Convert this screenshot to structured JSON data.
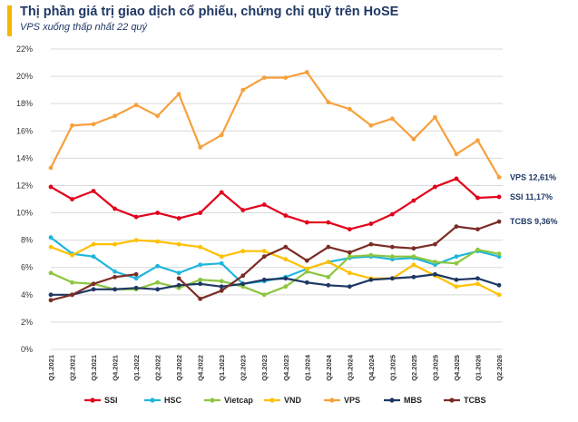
{
  "header": {
    "title": "Thị phần giá trị giao dịch cổ phiếu, chứng chỉ quỹ trên HoSE",
    "subtitle": "VPS xuống thấp nhất 22 quý"
  },
  "chart_data": {
    "type": "line",
    "title": "Thị phần giá trị giao dịch cổ phiếu, chứng chỉ quỹ trên HoSE",
    "subtitle": "VPS xuống thấp nhất 22 quý",
    "xlabel": "",
    "ylabel": "",
    "ylim": [
      0,
      22
    ],
    "yticks": [
      "0%",
      "2%",
      "4%",
      "6%",
      "8%",
      "10%",
      "12%",
      "14%",
      "16%",
      "18%",
      "20%",
      "22%"
    ],
    "grid": true,
    "legend_position": "bottom",
    "x": [
      "Q1.2021",
      "Q2.2021",
      "Q3.2021",
      "Q4.2021",
      "Q1.2022",
      "Q2.2022",
      "Q3.2022",
      "Q4.2022",
      "Q1.2023",
      "Q2.2023",
      "Q3.2023",
      "Q4.2023",
      "Q1.2024",
      "Q2.2024",
      "Q3.2024",
      "Q4.2024",
      "Q1.2025",
      "Q2.2025",
      "Q3.2025",
      "Q4.2025",
      "Q1.2026",
      "Q2.2026"
    ],
    "series": [
      {
        "name": "SSI",
        "color": "#e3001b",
        "values": [
          11.9,
          11.0,
          11.6,
          10.3,
          9.7,
          10.0,
          9.6,
          10.0,
          11.5,
          10.2,
          10.6,
          9.8,
          9.3,
          9.3,
          8.8,
          9.2,
          9.9,
          10.9,
          11.9,
          12.5,
          11.1,
          11.17
        ]
      },
      {
        "name": "HSC",
        "color": "#1fb6dc",
        "values": [
          8.2,
          7.0,
          6.8,
          5.7,
          5.2,
          6.1,
          5.6,
          6.2,
          6.3,
          4.8,
          5.0,
          5.3,
          5.9,
          6.4,
          6.7,
          6.8,
          6.6,
          6.7,
          6.2,
          6.8,
          7.2,
          6.8
        ]
      },
      {
        "name": "Vietcap",
        "color": "#8cc63f",
        "values": [
          5.6,
          4.9,
          4.8,
          4.4,
          4.4,
          4.9,
          4.5,
          5.1,
          5.0,
          4.6,
          4.0,
          4.6,
          5.7,
          5.3,
          6.8,
          6.9,
          6.8,
          6.8,
          6.4,
          6.3,
          7.3,
          7.0
        ]
      },
      {
        "name": "VND",
        "color": "#ffc000",
        "values": [
          7.5,
          6.9,
          7.7,
          7.7,
          8.0,
          7.9,
          7.7,
          7.5,
          6.8,
          7.2,
          7.2,
          6.6,
          5.9,
          6.4,
          5.6,
          5.2,
          5.2,
          6.2,
          5.4,
          4.6,
          4.8,
          4.0
        ]
      },
      {
        "name": "VPS",
        "color": "#f7a03c",
        "values": [
          13.3,
          16.4,
          16.5,
          17.1,
          17.9,
          17.1,
          18.7,
          14.8,
          15.7,
          19.0,
          19.9,
          19.9,
          20.3,
          18.1,
          17.6,
          16.4,
          16.9,
          15.4,
          17.0,
          14.3,
          15.3,
          12.61
        ]
      },
      {
        "name": "MBS",
        "color": "#1f3864",
        "values": [
          4.0,
          4.0,
          4.4,
          4.4,
          4.5,
          4.4,
          4.7,
          4.8,
          4.6,
          4.8,
          5.1,
          5.2,
          4.9,
          4.7,
          4.6,
          5.1,
          5.2,
          5.3,
          5.5,
          5.1,
          5.2,
          4.7
        ]
      },
      {
        "name": "TCBS",
        "color": "#7b2d26",
        "values": [
          3.6,
          4.0,
          4.8,
          5.3,
          5.5,
          null,
          5.2,
          3.7,
          4.3,
          5.4,
          6.8,
          7.5,
          6.5,
          7.5,
          7.1,
          7.7,
          7.5,
          7.4,
          7.7,
          9.0,
          8.8,
          9.36
        ]
      }
    ],
    "end_labels": [
      {
        "series": "VPS",
        "text": "VPS 12,61%"
      },
      {
        "series": "SSI",
        "text": "SSI 11,17%"
      },
      {
        "series": "TCBS",
        "text": "TCBS 9,36%"
      }
    ]
  }
}
